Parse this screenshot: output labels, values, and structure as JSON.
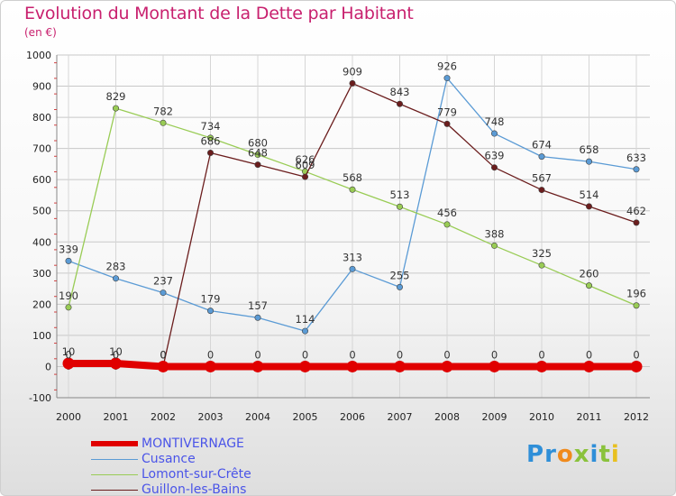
{
  "chart_data": {
    "type": "line",
    "title": "Evolution du Montant de la Dette par Habitant",
    "subtitle": "(en €)",
    "x": [
      "2000",
      "2001",
      "2002",
      "2003",
      "2004",
      "2005",
      "2006",
      "2007",
      "2008",
      "2009",
      "2010",
      "2011",
      "2012"
    ],
    "ylim": [
      -100,
      1000
    ],
    "yticks": [
      "-100",
      "0",
      "100",
      "200",
      "300",
      "400",
      "500",
      "600",
      "700",
      "800",
      "900",
      "1000"
    ],
    "grid": true,
    "legend": "bottom-left",
    "series": [
      {
        "name": "MONTIVERNAGE",
        "color": "#e00000",
        "values": [
          10,
          10,
          0,
          0,
          0,
          0,
          0,
          0,
          0,
          0,
          0,
          0,
          0
        ]
      },
      {
        "name": "Cusance",
        "color": "#5b9bd5",
        "values": [
          339,
          283,
          237,
          179,
          157,
          114,
          313,
          255,
          926,
          748,
          674,
          658,
          633
        ]
      },
      {
        "name": "Lomont-sur-Crête",
        "color": "#99cc55",
        "values": [
          190,
          829,
          782,
          734,
          680,
          626,
          568,
          513,
          456,
          388,
          325,
          260,
          196
        ]
      },
      {
        "name": "Guillon-les-Bains",
        "color": "#6b1d1d",
        "values": [
          0,
          0,
          0,
          686,
          648,
          609,
          909,
          843,
          779,
          639,
          567,
          514,
          462
        ]
      }
    ]
  },
  "logo": {
    "letters": [
      "P",
      "r",
      "o",
      "x",
      "i",
      "t",
      "i"
    ],
    "colors": [
      "#2f8fd8",
      "#2f8fd8",
      "#f08a1c",
      "#8ac23c",
      "#2f8fd8",
      "#8ac23c",
      "#e8c020"
    ]
  }
}
